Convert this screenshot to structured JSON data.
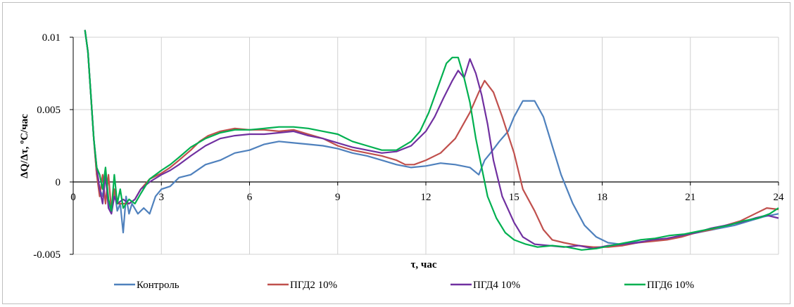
{
  "chart_data": {
    "type": "line",
    "xlabel": "τ, час",
    "ylabel": "ΔQ/Δτ, ºC/час",
    "xlim": [
      0,
      24
    ],
    "ylim": [
      -0.005,
      0.01
    ],
    "x_ticks": [
      "0",
      "3",
      "6",
      "9",
      "12",
      "15",
      "18",
      "21",
      "24"
    ],
    "y_ticks": [
      "-0.005",
      "0",
      "0.005",
      "0.01"
    ],
    "grid": true,
    "legend_position": "bottom",
    "series": [
      {
        "name": "Контроль",
        "color": "#4f81bd",
        "points": [
          [
            0.4,
            0.0105
          ],
          [
            0.5,
            0.009
          ],
          [
            0.6,
            0.006
          ],
          [
            0.7,
            0.003
          ],
          [
            0.8,
            0.0005
          ],
          [
            0.9,
            -0.0005
          ],
          [
            1.0,
            -0.001
          ],
          [
            1.1,
            0.0005
          ],
          [
            1.2,
            -0.0015
          ],
          [
            1.3,
            -0.002
          ],
          [
            1.4,
            -0.0005
          ],
          [
            1.5,
            -0.002
          ],
          [
            1.6,
            -0.0015
          ],
          [
            1.7,
            -0.0035
          ],
          [
            1.8,
            -0.001
          ],
          [
            1.9,
            -0.0022
          ],
          [
            2.0,
            -0.0015
          ],
          [
            2.2,
            -0.0022
          ],
          [
            2.4,
            -0.0018
          ],
          [
            2.6,
            -0.0022
          ],
          [
            2.8,
            -0.001
          ],
          [
            3.0,
            -0.0005
          ],
          [
            3.3,
            -0.0003
          ],
          [
            3.6,
            0.0003
          ],
          [
            4.0,
            0.0005
          ],
          [
            4.5,
            0.0012
          ],
          [
            5.0,
            0.0015
          ],
          [
            5.5,
            0.002
          ],
          [
            6.0,
            0.0022
          ],
          [
            6.5,
            0.0026
          ],
          [
            7.0,
            0.0028
          ],
          [
            7.5,
            0.0027
          ],
          [
            8.0,
            0.0026
          ],
          [
            8.5,
            0.0025
          ],
          [
            9.0,
            0.0023
          ],
          [
            9.5,
            0.002
          ],
          [
            10.0,
            0.0018
          ],
          [
            10.5,
            0.0015
          ],
          [
            11.0,
            0.0012
          ],
          [
            11.5,
            0.001
          ],
          [
            12.0,
            0.0011
          ],
          [
            12.5,
            0.0013
          ],
          [
            13.0,
            0.0012
          ],
          [
            13.5,
            0.001
          ],
          [
            13.8,
            0.0005
          ],
          [
            14.0,
            0.0015
          ],
          [
            14.2,
            0.002
          ],
          [
            14.5,
            0.0028
          ],
          [
            14.8,
            0.0035
          ],
          [
            15.0,
            0.0045
          ],
          [
            15.3,
            0.0056
          ],
          [
            15.7,
            0.0056
          ],
          [
            16.0,
            0.0045
          ],
          [
            16.3,
            0.0025
          ],
          [
            16.6,
            0.0005
          ],
          [
            17.0,
            -0.0015
          ],
          [
            17.4,
            -0.003
          ],
          [
            17.8,
            -0.0038
          ],
          [
            18.2,
            -0.0042
          ],
          [
            18.6,
            -0.0043
          ],
          [
            19.0,
            -0.0042
          ],
          [
            19.5,
            -0.0041
          ],
          [
            20.0,
            -0.004
          ],
          [
            20.5,
            -0.0038
          ],
          [
            21.0,
            -0.0036
          ],
          [
            21.5,
            -0.0034
          ],
          [
            22.0,
            -0.0032
          ],
          [
            22.5,
            -0.003
          ],
          [
            23.0,
            -0.0027
          ],
          [
            23.5,
            -0.0024
          ],
          [
            24.0,
            -0.0022
          ]
        ]
      },
      {
        "name": "ПГД2 10%",
        "color": "#c0504d",
        "points": [
          [
            0.4,
            0.0105
          ],
          [
            0.5,
            0.009
          ],
          [
            0.6,
            0.006
          ],
          [
            0.7,
            0.003
          ],
          [
            0.8,
            0.0005
          ],
          [
            0.9,
            -0.001
          ],
          [
            1.0,
            0.0005
          ],
          [
            1.1,
            -0.0015
          ],
          [
            1.2,
            0.0005
          ],
          [
            1.3,
            -0.002
          ],
          [
            1.4,
            -0.0005
          ],
          [
            1.5,
            -0.0015
          ],
          [
            1.7,
            -0.0015
          ],
          [
            1.9,
            -0.0015
          ],
          [
            2.1,
            -0.0012
          ],
          [
            2.3,
            -0.0005
          ],
          [
            2.6,
            0.0002
          ],
          [
            3.0,
            0.0006
          ],
          [
            3.3,
            0.001
          ],
          [
            3.6,
            0.0015
          ],
          [
            4.0,
            0.0022
          ],
          [
            4.3,
            0.0028
          ],
          [
            4.6,
            0.0032
          ],
          [
            5.0,
            0.0035
          ],
          [
            5.5,
            0.0037
          ],
          [
            6.0,
            0.0036
          ],
          [
            6.5,
            0.0036
          ],
          [
            7.0,
            0.0035
          ],
          [
            7.5,
            0.0036
          ],
          [
            8.0,
            0.0033
          ],
          [
            8.5,
            0.003
          ],
          [
            9.0,
            0.0025
          ],
          [
            9.5,
            0.0022
          ],
          [
            10.0,
            0.002
          ],
          [
            10.5,
            0.0018
          ],
          [
            11.0,
            0.0015
          ],
          [
            11.3,
            0.0012
          ],
          [
            11.6,
            0.0012
          ],
          [
            12.0,
            0.0015
          ],
          [
            12.5,
            0.002
          ],
          [
            13.0,
            0.003
          ],
          [
            13.5,
            0.0048
          ],
          [
            13.8,
            0.0062
          ],
          [
            14.0,
            0.007
          ],
          [
            14.3,
            0.0062
          ],
          [
            14.6,
            0.0045
          ],
          [
            15.0,
            0.002
          ],
          [
            15.3,
            -0.0005
          ],
          [
            15.7,
            -0.002
          ],
          [
            16.0,
            -0.0033
          ],
          [
            16.3,
            -0.004
          ],
          [
            16.7,
            -0.0042
          ],
          [
            17.2,
            -0.0044
          ],
          [
            17.7,
            -0.0045
          ],
          [
            18.2,
            -0.0045
          ],
          [
            18.7,
            -0.0044
          ],
          [
            19.2,
            -0.0042
          ],
          [
            19.7,
            -0.0041
          ],
          [
            20.2,
            -0.004
          ],
          [
            20.7,
            -0.0038
          ],
          [
            21.2,
            -0.0035
          ],
          [
            21.7,
            -0.0033
          ],
          [
            22.2,
            -0.003
          ],
          [
            22.7,
            -0.0027
          ],
          [
            23.2,
            -0.0022
          ],
          [
            23.6,
            -0.0018
          ],
          [
            24.0,
            -0.0019
          ]
        ]
      },
      {
        "name": "ПГД4 10%",
        "color": "#7030a0",
        "points": [
          [
            0.4,
            0.0105
          ],
          [
            0.5,
            0.009
          ],
          [
            0.6,
            0.006
          ],
          [
            0.7,
            0.003
          ],
          [
            0.8,
            0.001
          ],
          [
            0.9,
            -0.0005
          ],
          [
            1.0,
            -0.0015
          ],
          [
            1.1,
            0.0005
          ],
          [
            1.2,
            -0.0018
          ],
          [
            1.3,
            -0.0022
          ],
          [
            1.4,
            -0.001
          ],
          [
            1.5,
            -0.0015
          ],
          [
            1.7,
            -0.0012
          ],
          [
            1.9,
            -0.0015
          ],
          [
            2.1,
            -0.0012
          ],
          [
            2.3,
            -0.0005
          ],
          [
            2.6,
            0.0
          ],
          [
            3.0,
            0.0005
          ],
          [
            3.3,
            0.0008
          ],
          [
            3.6,
            0.0012
          ],
          [
            4.0,
            0.0018
          ],
          [
            4.5,
            0.0025
          ],
          [
            5.0,
            0.003
          ],
          [
            5.5,
            0.0032
          ],
          [
            6.0,
            0.0033
          ],
          [
            6.5,
            0.0033
          ],
          [
            7.0,
            0.0034
          ],
          [
            7.5,
            0.0035
          ],
          [
            8.0,
            0.0032
          ],
          [
            8.5,
            0.003
          ],
          [
            9.0,
            0.0027
          ],
          [
            9.5,
            0.0024
          ],
          [
            10.0,
            0.0022
          ],
          [
            10.5,
            0.002
          ],
          [
            11.0,
            0.0021
          ],
          [
            11.5,
            0.0025
          ],
          [
            12.0,
            0.0035
          ],
          [
            12.3,
            0.0045
          ],
          [
            12.6,
            0.0058
          ],
          [
            12.9,
            0.007
          ],
          [
            13.1,
            0.0077
          ],
          [
            13.3,
            0.0072
          ],
          [
            13.5,
            0.0085
          ],
          [
            13.7,
            0.0075
          ],
          [
            13.9,
            0.006
          ],
          [
            14.1,
            0.004
          ],
          [
            14.3,
            0.0015
          ],
          [
            14.6,
            -0.001
          ],
          [
            15.0,
            -0.0028
          ],
          [
            15.3,
            -0.0038
          ],
          [
            15.7,
            -0.0043
          ],
          [
            16.2,
            -0.0044
          ],
          [
            16.7,
            -0.0045
          ],
          [
            17.2,
            -0.0044
          ],
          [
            17.7,
            -0.0046
          ],
          [
            18.2,
            -0.0044
          ],
          [
            18.7,
            -0.0043
          ],
          [
            19.2,
            -0.0042
          ],
          [
            19.7,
            -0.004
          ],
          [
            20.2,
            -0.0039
          ],
          [
            20.7,
            -0.0037
          ],
          [
            21.2,
            -0.0035
          ],
          [
            21.7,
            -0.0032
          ],
          [
            22.2,
            -0.003
          ],
          [
            22.7,
            -0.0028
          ],
          [
            23.2,
            -0.0025
          ],
          [
            23.6,
            -0.0023
          ],
          [
            24.0,
            -0.0025
          ]
        ]
      },
      {
        "name": "ПГД6 10%",
        "color": "#00b050",
        "points": [
          [
            0.4,
            0.0105
          ],
          [
            0.5,
            0.009
          ],
          [
            0.6,
            0.006
          ],
          [
            0.7,
            0.003
          ],
          [
            0.8,
            0.001
          ],
          [
            0.9,
            0.0005
          ],
          [
            1.0,
            -0.0005
          ],
          [
            1.1,
            0.001
          ],
          [
            1.2,
            -0.0012
          ],
          [
            1.3,
            -0.002
          ],
          [
            1.4,
            0.0005
          ],
          [
            1.5,
            -0.0015
          ],
          [
            1.6,
            -0.0005
          ],
          [
            1.7,
            -0.0018
          ],
          [
            1.9,
            -0.0012
          ],
          [
            2.1,
            -0.0015
          ],
          [
            2.3,
            -0.0008
          ],
          [
            2.6,
            0.0002
          ],
          [
            3.0,
            0.0008
          ],
          [
            3.3,
            0.0012
          ],
          [
            3.6,
            0.0017
          ],
          [
            4.0,
            0.0024
          ],
          [
            4.5,
            0.003
          ],
          [
            5.0,
            0.0034
          ],
          [
            5.5,
            0.0036
          ],
          [
            6.0,
            0.0036
          ],
          [
            6.5,
            0.0037
          ],
          [
            7.0,
            0.0038
          ],
          [
            7.5,
            0.0038
          ],
          [
            8.0,
            0.0037
          ],
          [
            8.5,
            0.0035
          ],
          [
            9.0,
            0.0033
          ],
          [
            9.5,
            0.0028
          ],
          [
            10.0,
            0.0025
          ],
          [
            10.5,
            0.0022
          ],
          [
            11.0,
            0.0022
          ],
          [
            11.5,
            0.0028
          ],
          [
            11.8,
            0.0035
          ],
          [
            12.1,
            0.0048
          ],
          [
            12.4,
            0.0065
          ],
          [
            12.7,
            0.0082
          ],
          [
            12.9,
            0.0086
          ],
          [
            13.1,
            0.0086
          ],
          [
            13.3,
            0.0072
          ],
          [
            13.5,
            0.0055
          ],
          [
            13.7,
            0.003
          ],
          [
            13.9,
            0.001
          ],
          [
            14.1,
            -0.001
          ],
          [
            14.4,
            -0.0025
          ],
          [
            14.7,
            -0.0035
          ],
          [
            15.0,
            -0.004
          ],
          [
            15.4,
            -0.0043
          ],
          [
            15.8,
            -0.0045
          ],
          [
            16.3,
            -0.0044
          ],
          [
            16.8,
            -0.0045
          ],
          [
            17.3,
            -0.0047
          ],
          [
            17.8,
            -0.0046
          ],
          [
            18.3,
            -0.0044
          ],
          [
            18.8,
            -0.0042
          ],
          [
            19.3,
            -0.004
          ],
          [
            19.8,
            -0.0039
          ],
          [
            20.3,
            -0.0037
          ],
          [
            20.8,
            -0.0036
          ],
          [
            21.3,
            -0.0034
          ],
          [
            21.8,
            -0.0032
          ],
          [
            22.3,
            -0.003
          ],
          [
            22.8,
            -0.0027
          ],
          [
            23.3,
            -0.0025
          ],
          [
            23.7,
            -0.0022
          ],
          [
            24.0,
            -0.0018
          ]
        ]
      }
    ]
  }
}
